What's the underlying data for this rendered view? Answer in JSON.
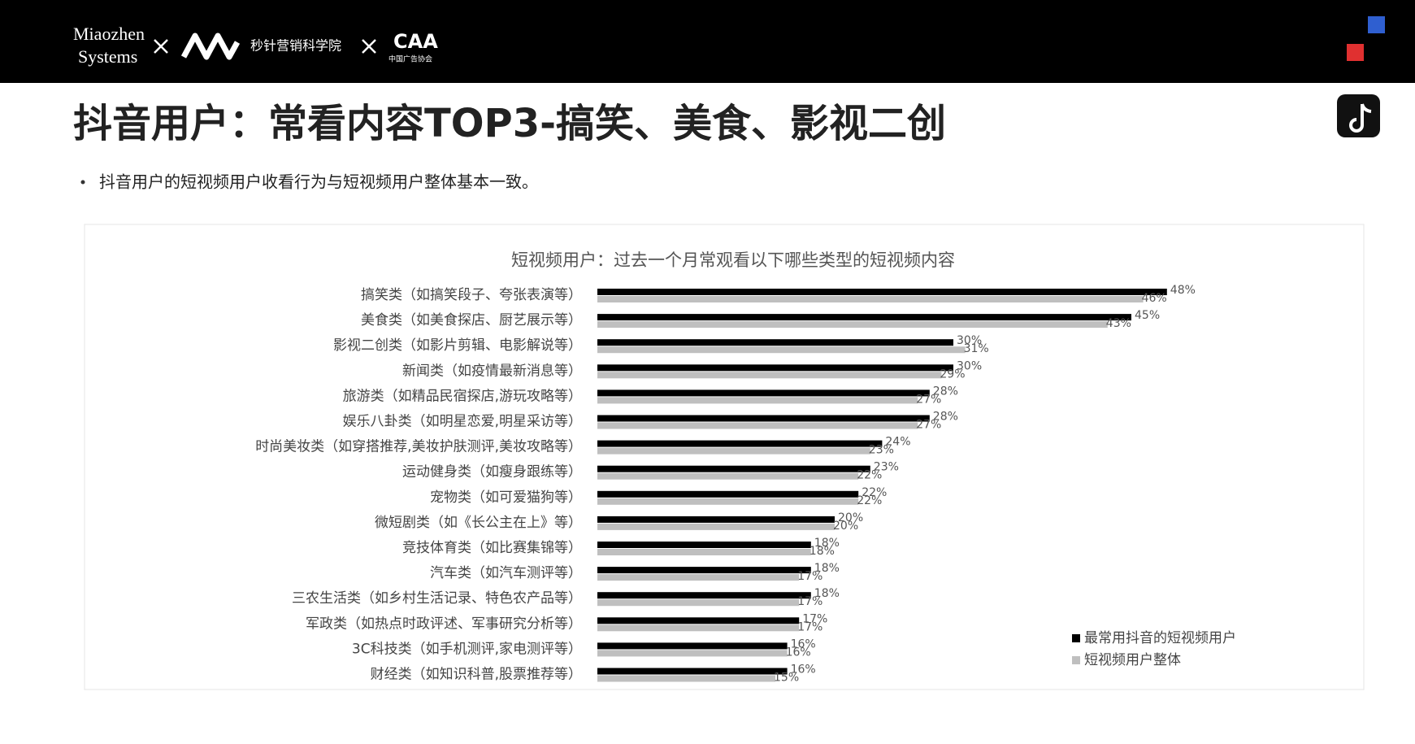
{
  "header": {
    "logo_1": [
      "Miaozhen",
      "Systems"
    ],
    "logo_2": "秒针营销科学院",
    "logo_3": "CAA",
    "logo_3_sub": "中国广告协会"
  },
  "title": "抖音用户：常看内容TOP3-搞笑、美食、影视二创",
  "bullet": "抖音用户的短视频用户收看行为与短视频用户整体基本一致。",
  "chart_data": {
    "type": "hbar",
    "title": "短视频用户：过去一个月常观看以下哪些类型的短视频内容",
    "categories": [
      "搞笑类（如搞笑段子、夸张表演等）",
      "美食类（如美食探店、厨艺展示等）",
      "影视二创类（如影片剪辑、电影解说等）",
      "新闻类（如疫情最新消息等）",
      "旅游类（如精品民宿探店,游玩攻略等）",
      "娱乐八卦类（如明星恋爱,明星采访等）",
      "时尚美妆类（如穿搭推荐,美妆护肤测评,美妆攻略等）",
      "运动健身类（如瘦身跟练等）",
      "宠物类（如可爱猫狗等）",
      "微短剧类（如《长公主在上》等）",
      "竞技体育类（如比赛集锦等）",
      "汽车类（如汽车测评等）",
      "三农生活类（如乡村生活记录、特色农产品等）",
      "军政类（如热点时政评述、军事研究分析等）",
      "3C科技类（如手机测评,家电测评等）",
      "财经类（如知识科普,股票推荐等）"
    ],
    "series": [
      {
        "name": "最常用抖音的短视频用户",
        "color": "#000000",
        "values": [
          48,
          45,
          30,
          30,
          28,
          28,
          24,
          23,
          22,
          20,
          18,
          18,
          18,
          17,
          16,
          16
        ],
        "value_labels": [
          "48%",
          "45%",
          "30%",
          "30%",
          "28%",
          "28%",
          "24%",
          "23%",
          "22%",
          "20%",
          "18%",
          "18%",
          "18%",
          "17%",
          "16%",
          "16%"
        ]
      },
      {
        "name": "短视频用户整体",
        "color": "#bfbfbf",
        "values": [
          46,
          43,
          31,
          29,
          27,
          27,
          23,
          22,
          22,
          20,
          18,
          17,
          17,
          17,
          16,
          15
        ],
        "value_labels": [
          "46%",
          "43%",
          "31%",
          "29%",
          "27%",
          "27%",
          "23%",
          "22%",
          "22%",
          "20%",
          "18%",
          "17%",
          "17%",
          "17%",
          "16%",
          "15%"
        ]
      }
    ],
    "legend": "lower right"
  }
}
